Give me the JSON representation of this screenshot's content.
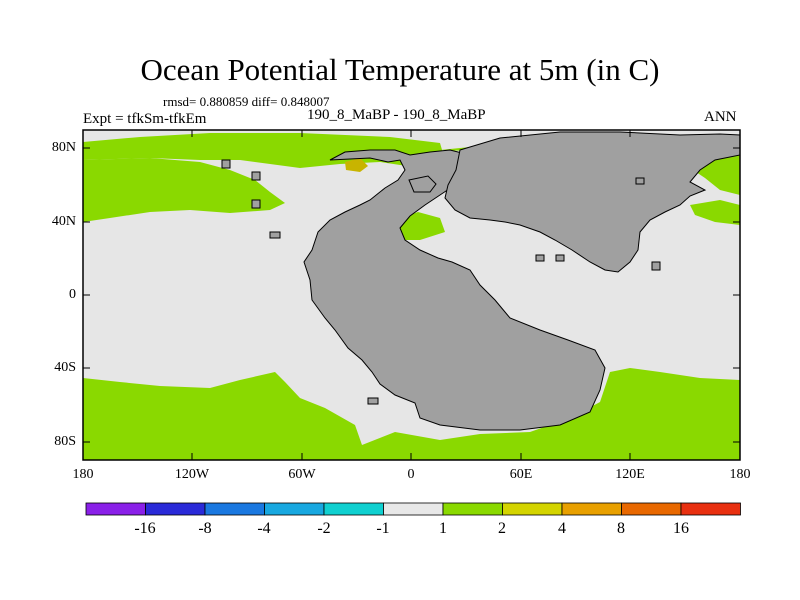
{
  "title": "Ocean Potential Temperature at 5m (in C)",
  "stats": "rmsd= 0.880859 diff= 0.848007",
  "experiment": "Expt = tfkSm-tfkEm",
  "cases": "190_8_MaBP - 190_8_MaBP",
  "season": "ANN",
  "map": {
    "lat_ticks": [
      "80N",
      "40N",
      "0",
      "40S",
      "80S"
    ],
    "lon_ticks": [
      "180",
      "120W",
      "60W",
      "0",
      "60E",
      "120E",
      "180"
    ],
    "land_color": "#a0a0a0",
    "near_zero_color": "#e6e6e6",
    "positive_color": "#8ad900",
    "warm_color": "#c8b400"
  },
  "colorbar": {
    "colors": [
      "#8a20e8",
      "#2a2ad8",
      "#1a78e0",
      "#18a8e0",
      "#10d0d0",
      "#e8e8e8",
      "#8ad900",
      "#d4d400",
      "#e8a000",
      "#e86800",
      "#e83010"
    ],
    "labels": [
      "-16",
      "-8",
      "-4",
      "-2",
      "-1",
      "1",
      "2",
      "4",
      "8",
      "16"
    ]
  }
}
